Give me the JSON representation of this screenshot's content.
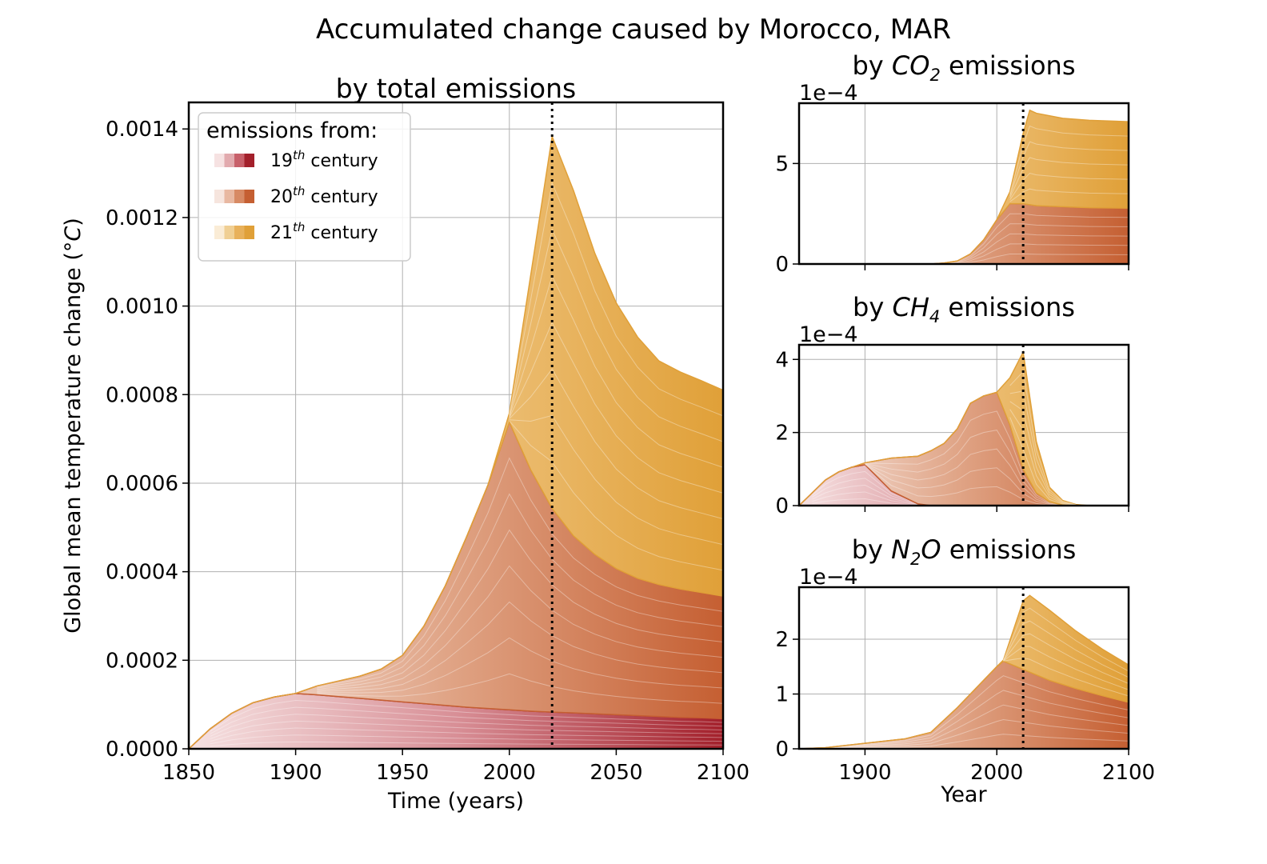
{
  "chart_data": [
    {
      "id": "total",
      "type": "area",
      "subtype": "stacked-area (cohort layers)",
      "suptitle": "Accumulated change caused by Morocco, MAR",
      "title": "by total emissions",
      "xlabel": "Time (years)",
      "ylabel": "Global mean temperature change (°C)",
      "xlim": [
        1850,
        2100
      ],
      "ylim": [
        0,
        0.00146
      ],
      "xticks": [
        1850,
        1900,
        1950,
        2000,
        2050,
        2100
      ],
      "xtick_labels": [
        "1850",
        "1900",
        "1950",
        "2000",
        "2050",
        "2100"
      ],
      "yticks": [
        0,
        0.0002,
        0.0004,
        0.0006,
        0.0008,
        0.001,
        0.0012,
        0.0014
      ],
      "ytick_labels": [
        "0.0000",
        "0.0002",
        "0.0004",
        "0.0006",
        "0.0008",
        "0.0010",
        "0.0012",
        "0.0014"
      ],
      "grid": true,
      "vline_year": 2020,
      "legend": {
        "title": "emissions from:",
        "position": "top-left",
        "entries": [
          {
            "label_base": "19",
            "label_sup": "th",
            "label_rest": " century",
            "colors": [
              "#f6e2e2",
              "#e2aaae",
              "#c8606a",
              "#a3202b"
            ]
          },
          {
            "label_base": "20",
            "label_sup": "th",
            "label_rest": " century",
            "colors": [
              "#f6e5de",
              "#e8b8a1",
              "#d78a64",
              "#c55f32"
            ]
          },
          {
            "label_base": "21",
            "label_sup": "th",
            "label_rest": " century",
            "colors": [
              "#faecd6",
              "#f0cf93",
              "#e8b15b",
              "#e0a038"
            ]
          }
        ]
      },
      "x": [
        1850,
        1860,
        1870,
        1880,
        1890,
        1900,
        1910,
        1920,
        1930,
        1940,
        1950,
        1960,
        1970,
        1980,
        1990,
        2000,
        2010,
        2020,
        2030,
        2040,
        2050,
        2060,
        2070,
        2080,
        2090,
        2100
      ],
      "series": [
        {
          "century": "19th",
          "values": [
            0,
            4.5e-05,
            8e-05,
            0.000104,
            0.000117,
            0.000125,
            0.000122,
            0.000118,
            0.000114,
            0.00011,
            0.000106,
            0.000102,
            9.8e-05,
            9.4e-05,
            9.1e-05,
            8.8e-05,
            8.5e-05,
            8.3e-05,
            8.1e-05,
            7.9e-05,
            7.7e-05,
            7.5e-05,
            7.3e-05,
            7.1e-05,
            7e-05,
            6.8e-05
          ]
        },
        {
          "century": "20th",
          "values": [
            0,
            0,
            0,
            0,
            0,
            0,
            2e-05,
            3.5e-05,
            5e-05,
            7e-05,
            0.000105,
            0.000175,
            0.00027,
            0.000385,
            0.000505,
            0.00065,
            0.000545,
            0.00046,
            0.0004,
            0.00036,
            0.00033,
            0.00031,
            0.000298,
            0.00029,
            0.000283,
            0.000277
          ]
        },
        {
          "century": "21st",
          "values": [
            0,
            0,
            0,
            0,
            0,
            0,
            0,
            0,
            0,
            0,
            0,
            0,
            0,
            0,
            0,
            2e-05,
            0.00044,
            0.00084,
            0.00078,
            0.00068,
            0.0006,
            0.000545,
            0.000505,
            0.00049,
            0.000478,
            0.000465
          ]
        }
      ]
    },
    {
      "id": "co2",
      "type": "area",
      "title_pre": "by ",
      "title_chem": "CO",
      "title_sub": "2",
      "title_post": " emissions",
      "offset_text": "1e−4",
      "xlim": [
        1850,
        2100
      ],
      "ylim": [
        0,
        8
      ],
      "yticks": [
        0,
        5
      ],
      "ytick_labels": [
        "0",
        "5"
      ],
      "xticks": [
        1900,
        2000,
        2100
      ],
      "grid": true,
      "vline_year": 2020,
      "x": [
        1850,
        1950,
        1960,
        1970,
        1980,
        1990,
        2000,
        2010,
        2020,
        2025,
        2030,
        2050,
        2070,
        2100
      ],
      "series": [
        {
          "century": "20th",
          "values": [
            0,
            0,
            0.05,
            0.15,
            0.5,
            1.2,
            2.2,
            3.0,
            3.0,
            2.95,
            2.9,
            2.85,
            2.8,
            2.78
          ]
        },
        {
          "century": "21st",
          "values": [
            0,
            0,
            0,
            0,
            0,
            0,
            0,
            0.6,
            3.5,
            4.7,
            4.6,
            4.4,
            4.35,
            4.3
          ]
        }
      ]
    },
    {
      "id": "ch4",
      "type": "area",
      "title_pre": "by ",
      "title_chem": "CH",
      "title_sub": "4",
      "title_post": " emissions",
      "offset_text": "1e−4",
      "xlim": [
        1850,
        2100
      ],
      "ylim": [
        0,
        4.4
      ],
      "yticks": [
        0,
        2,
        4
      ],
      "ytick_labels": [
        "0",
        "2",
        "4"
      ],
      "xticks": [
        1900,
        2000,
        2100
      ],
      "grid": true,
      "vline_year": 2020,
      "x": [
        1850,
        1860,
        1870,
        1880,
        1890,
        1900,
        1920,
        1940,
        1950,
        1960,
        1970,
        1980,
        1990,
        2000,
        2010,
        2020,
        2030,
        2040,
        2050,
        2060,
        2070,
        2100
      ],
      "series": [
        {
          "century": "19th",
          "values": [
            0,
            0.35,
            0.7,
            0.92,
            1.05,
            1.12,
            0.4,
            0.05,
            0,
            0,
            0,
            0,
            0,
            0,
            0,
            0,
            0,
            0,
            0,
            0,
            0,
            0
          ]
        },
        {
          "century": "20th",
          "values": [
            0,
            0,
            0,
            0,
            0,
            0.05,
            0.9,
            1.3,
            1.5,
            1.7,
            2.1,
            2.8,
            3.0,
            3.1,
            2.2,
            1.0,
            0.35,
            0.1,
            0.02,
            0,
            0,
            0
          ]
        },
        {
          "century": "21st",
          "values": [
            0,
            0,
            0,
            0,
            0,
            0,
            0,
            0,
            0,
            0,
            0,
            0,
            0,
            0,
            1.3,
            3.2,
            1.4,
            0.4,
            0.12,
            0.03,
            0,
            0
          ]
        }
      ]
    },
    {
      "id": "n2o",
      "type": "area",
      "title_pre": "by ",
      "title_chem": "N",
      "title_sub": "2",
      "title_chem2": "O",
      "title_post": " emissions",
      "offset_text": "1e−4",
      "xlabel": "Year",
      "xlim": [
        1850,
        2100
      ],
      "ylim": [
        0,
        2.95
      ],
      "yticks": [
        0,
        1,
        2
      ],
      "ytick_labels": [
        "0",
        "1",
        "2"
      ],
      "xticks": [
        1900,
        2000,
        2100
      ],
      "xtick_labels": [
        "1900",
        "2000",
        "2100"
      ],
      "grid": true,
      "vline_year": 2020,
      "x": [
        1850,
        1870,
        1900,
        1930,
        1950,
        1970,
        1990,
        2000,
        2005,
        2020,
        2025,
        2040,
        2060,
        2080,
        2100
      ],
      "series": [
        {
          "century": "20th",
          "values": [
            0,
            0.02,
            0.1,
            0.18,
            0.3,
            0.75,
            1.25,
            1.5,
            1.6,
            1.45,
            1.4,
            1.25,
            1.1,
            0.97,
            0.85
          ]
        },
        {
          "century": "21st",
          "values": [
            0,
            0,
            0,
            0,
            0,
            0,
            0,
            0,
            0.02,
            1.25,
            1.4,
            1.28,
            1.05,
            0.85,
            0.68
          ]
        }
      ]
    }
  ]
}
